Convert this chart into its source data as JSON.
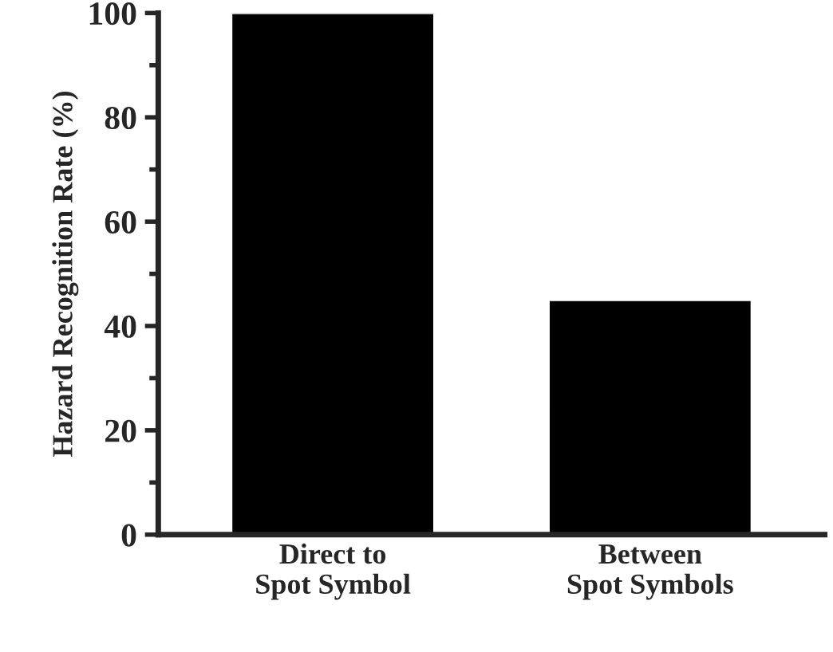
{
  "chart_data": {
    "type": "bar",
    "ylabel": "Hazard Recognition Rate (%)",
    "categories": [
      "Direct to\nSpot Symbol",
      "Between\nSpot Symbols"
    ],
    "values": [
      100,
      45
    ],
    "color": "#000000",
    "ylim": [
      0,
      100
    ],
    "yticks": [
      0,
      20,
      40,
      60,
      80,
      100
    ],
    "grid": false
  }
}
